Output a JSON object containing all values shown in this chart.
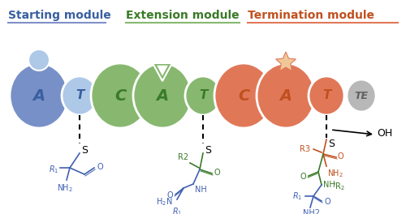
{
  "bg_color": "#ffffff",
  "title_starting": "Starting module",
  "title_extension": "Extension module",
  "title_termination": "Termination module",
  "blue_dark": "#3a5fa0",
  "blue_circle": "#7890c8",
  "blue_small_circle": "#aec8e8",
  "blue_chem": "#4060b0",
  "green_circle": "#88b870",
  "green_dark": "#3a7a28",
  "green_chem": "#3a7a28",
  "orange_circle": "#e07858",
  "orange_dark": "#c05020",
  "orange_chem": "#c05020",
  "gray_circle": "#b8b8b8",
  "gray_dark": "#606060"
}
